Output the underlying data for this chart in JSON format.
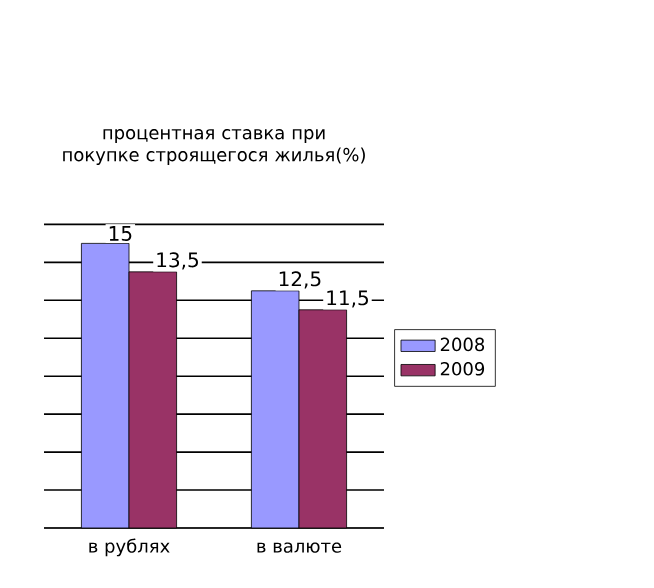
{
  "chart_data": {
    "type": "bar",
    "title": "процентная ставка при покупке строящегося жилья(%)",
    "categories": [
      "в рублях",
      "в валюте"
    ],
    "series": [
      {
        "name": "2008",
        "color": "#9999ff",
        "values": [
          15,
          12.5
        ],
        "value_labels": [
          "15",
          "12,5"
        ]
      },
      {
        "name": "2009",
        "color": "#993366",
        "values": [
          13.5,
          11.5
        ],
        "value_labels": [
          "13,5",
          "11,5"
        ]
      }
    ],
    "ylim": [
      0,
      16
    ],
    "yticks": [
      {
        "value": 0,
        "label": null
      },
      {
        "value": 2,
        "label": null
      },
      {
        "value": 4,
        "label": null
      },
      {
        "value": 6,
        "label": null
      },
      {
        "value": 8,
        "label": null
      },
      {
        "value": 10,
        "label": null
      },
      {
        "value": 12,
        "label": null
      },
      {
        "value": 14,
        "label": null
      },
      {
        "value": 16,
        "label": null
      }
    ],
    "grid": "y",
    "legend": "right",
    "tick_labels": "x"
  }
}
